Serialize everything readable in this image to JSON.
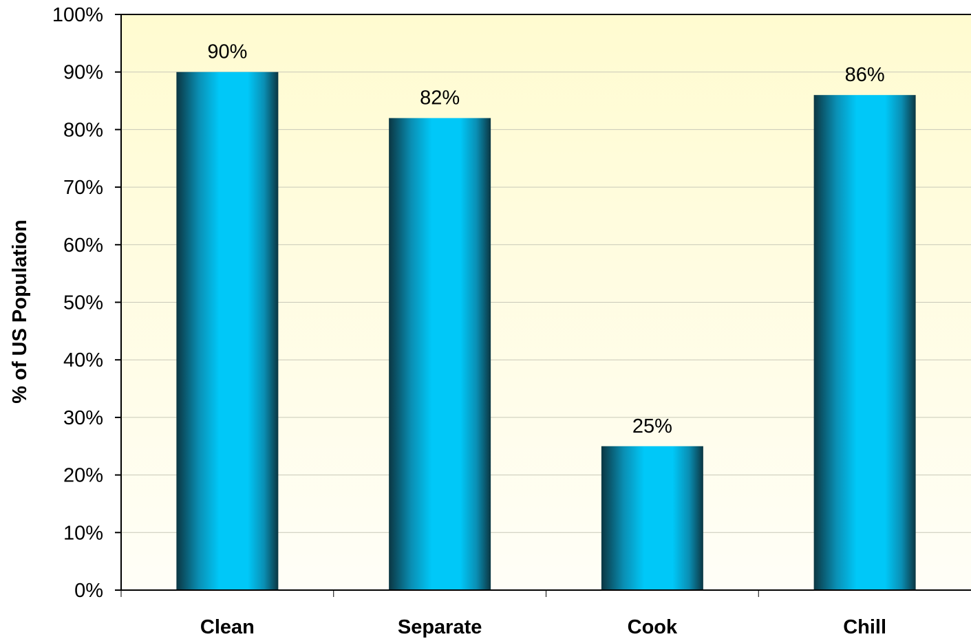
{
  "chart_data": {
    "type": "bar",
    "title": "",
    "xlabel": "",
    "ylabel": "% of US Population",
    "categories": [
      "Clean",
      "Separate",
      "Cook",
      "Chill"
    ],
    "values": [
      90,
      82,
      25,
      86
    ],
    "data_labels": [
      "90%",
      "82%",
      "25%",
      "86%"
    ],
    "ylim": [
      0,
      100
    ],
    "y_ticks": [
      0,
      10,
      20,
      30,
      40,
      50,
      60,
      70,
      80,
      90,
      100
    ],
    "y_tick_labels": [
      "0%",
      "10%",
      "20%",
      "30%",
      "40%",
      "50%",
      "60%",
      "70%",
      "80%",
      "90%",
      "100%"
    ],
    "grid": true,
    "legend": "none",
    "colors": {
      "bar_dark": "#0b3642",
      "bar_mid": "#0a8fb4",
      "bar_light": "#00c8f8",
      "plot_bg_top": "#fffbd0",
      "plot_bg_bottom": "#fffef7",
      "grid": "#c8c8b8",
      "axis": "#000000",
      "text": "#000000"
    }
  }
}
